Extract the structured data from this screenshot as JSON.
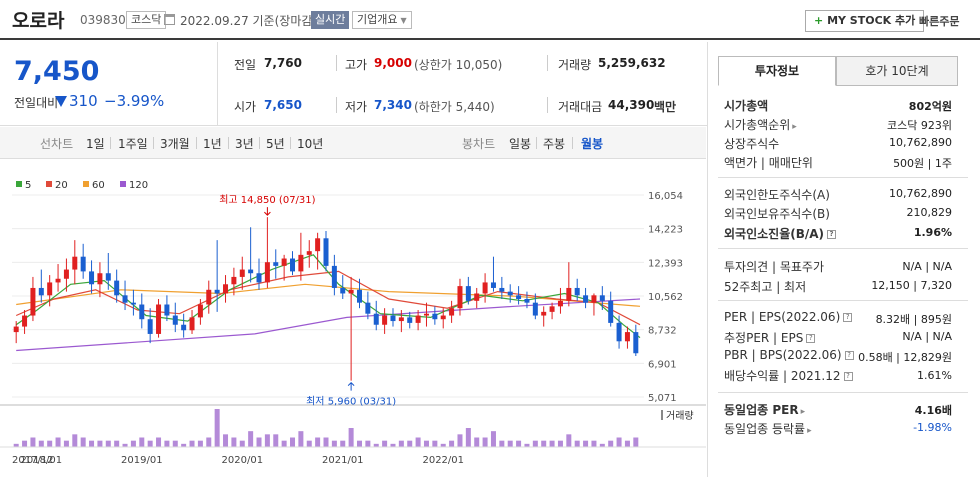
{
  "header": {
    "name": "오로라",
    "code": "039830",
    "market": "코스닥",
    "date": "2022.09.27 기준(장마감)",
    "realtime": "실시간",
    "company_overview": "기업개요",
    "mystock_plus": "+",
    "mystock": "MY STOCK 추가",
    "quick_order": "빠른주문"
  },
  "price": {
    "current": "7,450",
    "diff_label": "전일대비",
    "diff": "310",
    "rate": "−3.99%"
  },
  "quotes": {
    "prev_label": "전일",
    "prev": "7,760",
    "high_label": "고가",
    "high": "9,000",
    "upper_limit": "(상한가 10,050)",
    "volume_label": "거래량",
    "volume": "5,259,632",
    "open_label": "시가",
    "open": "7,650",
    "low_label": "저가",
    "low": "7,340",
    "lower_limit": "(하한가 5,440)",
    "amount_label": "거래대금",
    "amount": "44,390",
    "amount_unit": "백만"
  },
  "period_bar": {
    "line_label": "선차트",
    "line_items": [
      "1일",
      "1주일",
      "3개월",
      "1년",
      "3년",
      "5년",
      "10년"
    ],
    "candle_label": "봉차트",
    "candle_items": [
      "일봉",
      "주봉",
      "월봉"
    ]
  },
  "chart_data": {
    "type": "candlestick",
    "legend": [
      {
        "name": "5",
        "color": "#3aa63a"
      },
      {
        "name": "20",
        "color": "#e04a3a"
      },
      {
        "name": "60",
        "color": "#f0a030"
      },
      {
        "name": "120",
        "color": "#9b59d0"
      }
    ],
    "y_ticks": [
      "16,054",
      "14,223",
      "12,393",
      "10,562",
      "8,732",
      "6,901",
      "5,071"
    ],
    "ylim": [
      5071,
      16054
    ],
    "x_labels": [
      "2017/12",
      "2018/01",
      "2019/01",
      "2020/01",
      "2021/01",
      "2022/01"
    ],
    "max_label": "최고 14,850 (07/31)",
    "min_label": "최저 5,960 (03/31)",
    "volume_label": "거래량",
    "candles": [
      [
        8600,
        9200,
        8000,
        8900
      ],
      [
        8900,
        9800,
        8500,
        9500
      ],
      [
        9500,
        11600,
        9200,
        11000
      ],
      [
        11000,
        12000,
        10200,
        10600
      ],
      [
        10600,
        11700,
        10000,
        11300
      ],
      [
        11300,
        12300,
        10800,
        11500
      ],
      [
        11500,
        12600,
        10800,
        12000
      ],
      [
        12000,
        13600,
        11200,
        12700
      ],
      [
        12700,
        13400,
        11500,
        11900
      ],
      [
        11900,
        12500,
        10700,
        11200
      ],
      [
        11200,
        12400,
        10500,
        11800
      ],
      [
        11800,
        12900,
        10900,
        11400
      ],
      [
        11400,
        12000,
        10200,
        10600
      ],
      [
        10600,
        11400,
        9800,
        10200
      ],
      [
        10200,
        10900,
        9500,
        10100
      ],
      [
        10100,
        10700,
        8800,
        9300
      ],
      [
        9300,
        9900,
        8000,
        8500
      ],
      [
        8500,
        10400,
        8300,
        10100
      ],
      [
        10100,
        10600,
        9200,
        9500
      ],
      [
        9500,
        10200,
        8600,
        9000
      ],
      [
        9000,
        9600,
        8300,
        8700
      ],
      [
        8700,
        9800,
        8500,
        9400
      ],
      [
        9400,
        10400,
        9000,
        10100
      ],
      [
        10100,
        11400,
        9600,
        10900
      ],
      [
        10900,
        13600,
        9700,
        10700
      ],
      [
        10700,
        11700,
        10200,
        11200
      ],
      [
        11200,
        12100,
        10600,
        11600
      ],
      [
        11600,
        12700,
        10900,
        12000
      ],
      [
        12000,
        14300,
        11300,
        11800
      ],
      [
        11800,
        12600,
        10900,
        11300
      ],
      [
        11300,
        14850,
        11000,
        12400
      ],
      [
        12400,
        13100,
        11500,
        12200
      ],
      [
        12200,
        12800,
        11400,
        12600
      ],
      [
        12600,
        13000,
        11700,
        11900
      ],
      [
        11900,
        14000,
        11400,
        12800
      ],
      [
        12800,
        13600,
        12100,
        13000
      ],
      [
        13000,
        14000,
        12000,
        13700
      ],
      [
        13700,
        14100,
        11900,
        12200
      ],
      [
        12200,
        12800,
        10600,
        11000
      ],
      [
        11000,
        11700,
        10400,
        10700
      ],
      [
        10700,
        11600,
        5960,
        10900
      ],
      [
        10900,
        11500,
        9900,
        10200
      ],
      [
        10200,
        10800,
        9300,
        9600
      ],
      [
        9600,
        10300,
        8700,
        9000
      ],
      [
        9000,
        9900,
        8500,
        9500
      ],
      [
        9500,
        9900,
        8900,
        9200
      ],
      [
        9200,
        9800,
        8600,
        9400
      ],
      [
        9400,
        9700,
        8800,
        9100
      ],
      [
        9100,
        9800,
        8700,
        9500
      ],
      [
        9500,
        10200,
        8900,
        9600
      ],
      [
        9600,
        10000,
        9000,
        9300
      ],
      [
        9300,
        9900,
        8800,
        9500
      ],
      [
        9500,
        10300,
        9100,
        9900
      ],
      [
        9900,
        11500,
        9500,
        11100
      ],
      [
        11100,
        11600,
        10100,
        10300
      ],
      [
        10300,
        11000,
        9900,
        10700
      ],
      [
        10700,
        11800,
        10200,
        11300
      ],
      [
        11300,
        12700,
        10800,
        11000
      ],
      [
        11000,
        11600,
        10400,
        10800
      ],
      [
        10800,
        11200,
        10200,
        10600
      ],
      [
        10600,
        11100,
        10100,
        10400
      ],
      [
        10400,
        10800,
        9900,
        10200
      ],
      [
        10200,
        10700,
        9300,
        9500
      ],
      [
        9500,
        10000,
        8900,
        9700
      ],
      [
        9700,
        10200,
        9300,
        10000
      ],
      [
        10000,
        11000,
        9600,
        10300
      ],
      [
        10300,
        12400,
        10000,
        11000
      ],
      [
        11000,
        11500,
        10300,
        10600
      ],
      [
        10600,
        11000,
        9900,
        10200
      ],
      [
        10200,
        10700,
        9500,
        10600
      ],
      [
        10600,
        11100,
        9800,
        10300
      ],
      [
        10300,
        10800,
        8900,
        9100
      ],
      [
        9100,
        9500,
        7700,
        8100
      ],
      [
        8100,
        8900,
        7700,
        8600
      ],
      [
        8600,
        9000,
        7300,
        7450
      ]
    ],
    "volumes": [
      1,
      2,
      3,
      2,
      2,
      3,
      2,
      4,
      3,
      2,
      2,
      2,
      2,
      1,
      2,
      3,
      2,
      3,
      2,
      2,
      1,
      2,
      2,
      3,
      12,
      4,
      3,
      2,
      5,
      3,
      4,
      4,
      2,
      3,
      5,
      2,
      3,
      3,
      2,
      2,
      6,
      2,
      2,
      1,
      2,
      1,
      2,
      2,
      3,
      2,
      2,
      1,
      2,
      4,
      6,
      3,
      3,
      5,
      2,
      2,
      2,
      1,
      2,
      2,
      2,
      2,
      4,
      2,
      2,
      2,
      1,
      2,
      3,
      2,
      3
    ],
    "ma120": [
      [
        0,
        7600
      ],
      [
        29,
        8500
      ],
      [
        40,
        9400
      ],
      [
        60,
        10000
      ],
      [
        75,
        10400
      ]
    ],
    "ma60": [
      [
        0,
        10100
      ],
      [
        13,
        10900
      ],
      [
        25,
        10700
      ],
      [
        35,
        11200
      ],
      [
        45,
        10800
      ],
      [
        60,
        10550
      ],
      [
        75,
        10000
      ]
    ],
    "ma20": [
      [
        0,
        9500
      ],
      [
        5,
        10400
      ],
      [
        10,
        10900
      ],
      [
        15,
        9800
      ],
      [
        20,
        9600
      ],
      [
        26,
        10900
      ],
      [
        33,
        11600
      ],
      [
        39,
        11900
      ],
      [
        45,
        10400
      ],
      [
        52,
        9900
      ],
      [
        58,
        10800
      ],
      [
        65,
        10400
      ],
      [
        70,
        10200
      ],
      [
        75,
        9000
      ]
    ],
    "ma5": [
      [
        0,
        9000
      ],
      [
        3,
        9800
      ],
      [
        7,
        11200
      ],
      [
        11,
        11400
      ],
      [
        16,
        9500
      ],
      [
        21,
        9200
      ],
      [
        26,
        10900
      ],
      [
        31,
        12000
      ],
      [
        36,
        12800
      ],
      [
        39,
        11200
      ],
      [
        44,
        9600
      ],
      [
        50,
        9400
      ],
      [
        56,
        10600
      ],
      [
        61,
        10300
      ],
      [
        66,
        10700
      ],
      [
        70,
        10200
      ],
      [
        73,
        9000
      ],
      [
        75,
        8300
      ]
    ]
  },
  "right_panel": {
    "tab_invest": "투자정보",
    "tab_hoga": "호가 10단계",
    "market_cap_label": "시가총액",
    "market_cap": "802억원",
    "cap_rank_label": "시가총액순위",
    "cap_rank": "코스닥 923위",
    "shares_label": "상장주식수",
    "shares": "10,762,890",
    "par_label": "액면가 | 매매단위",
    "par": "500원 | 1주",
    "foreign_limit_label": "외국인한도주식수(A)",
    "foreign_limit": "10,762,890",
    "foreign_hold_label": "외국인보유주식수(B)",
    "foreign_hold": "210,829",
    "foreign_rate_label": "외국인소진율(B/A)",
    "foreign_rate": "1.96%",
    "opinion_label": "투자의견 | 목표주가",
    "opinion": "N/A | N/A",
    "week52_label": "52주최고 | 최저",
    "week52": "12,150 | 7,320",
    "per_label": "PER | EPS(2022.06)",
    "per": "8.32배 | 895원",
    "est_per_label": "추정PER | EPS",
    "est_per": "N/A | N/A",
    "pbr_label": "PBR | BPS(2022.06)",
    "pbr": "0.58배 | 12,829원",
    "div_label": "배당수익률 | 2021.12",
    "div": "1.61%",
    "ind_per_label": "동일업종 PER",
    "ind_per": "4.16배",
    "ind_rate_label": "동일업종 등락률",
    "ind_rate": "-1.98%"
  }
}
